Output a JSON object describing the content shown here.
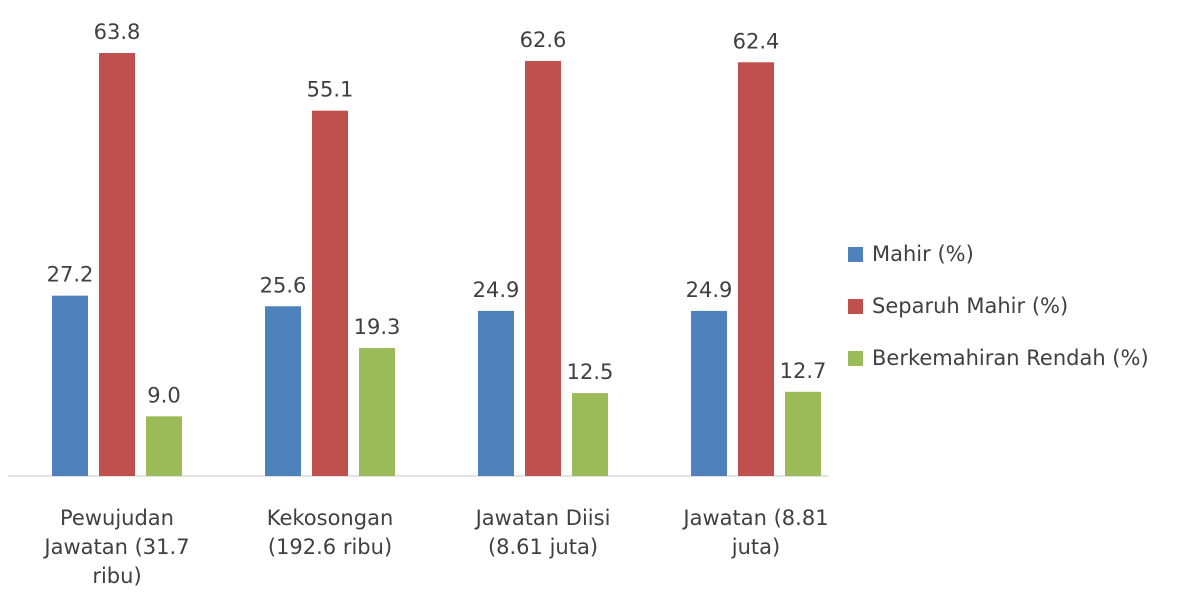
{
  "chart_data": {
    "type": "bar",
    "title": "",
    "xlabel": "",
    "ylabel": "",
    "ylim": [
      0,
      68
    ],
    "grid": false,
    "legend_position": "right",
    "categories": [
      [
        "Pewujudan",
        "Jawatan (31.7",
        "ribu)"
      ],
      [
        "Kekosongan",
        "(192.6 ribu)"
      ],
      [
        "Jawatan Diisi",
        "(8.61 juta)"
      ],
      [
        "Jawatan (8.81",
        "juta)"
      ]
    ],
    "series": [
      {
        "name": "Mahir (%)",
        "color": "#4f81bd",
        "values": [
          27.2,
          25.6,
          24.9,
          24.9
        ],
        "labels": [
          "27.2",
          "25.6",
          "24.9",
          "24.9"
        ]
      },
      {
        "name": "Separuh Mahir (%)",
        "color": "#c0504d",
        "values": [
          63.8,
          55.1,
          62.6,
          62.4
        ],
        "labels": [
          "63.8",
          "55.1",
          "62.6",
          "62.4"
        ]
      },
      {
        "name": "Berkemahiran Rendah (%)",
        "color": "#9bbb59",
        "values": [
          9.0,
          19.3,
          12.5,
          12.7
        ],
        "labels": [
          "9.0",
          "19.3",
          "12.5",
          "12.7"
        ]
      }
    ]
  }
}
